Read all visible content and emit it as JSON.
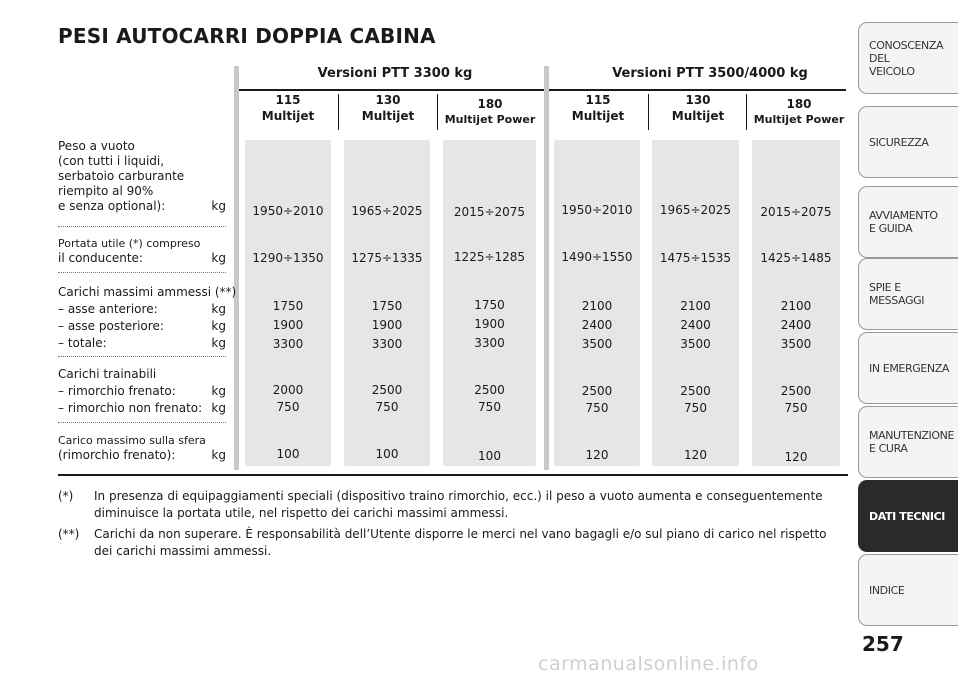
{
  "title": "PESI AUTOCARRI DOPPIA CABINA",
  "groups": [
    "Versioni PTT 3300 kg",
    "Versioni PTT 3500/4000 kg"
  ],
  "columns": [
    {
      "num": "115",
      "sub": "Multijet"
    },
    {
      "num": "130",
      "sub": "Multijet"
    },
    {
      "num": "180",
      "sub": "Multijet Power"
    },
    {
      "num": "115",
      "sub": "Multijet"
    },
    {
      "num": "130",
      "sub": "Multijet"
    },
    {
      "num": "180",
      "sub": "Multijet Power"
    }
  ],
  "rows": {
    "peso_vuoto": {
      "label_lines": [
        "Peso a vuoto",
        "(con tutti i liquidi,",
        "serbatoio carburante",
        "riempito al 90%"
      ],
      "label_last": "e senza optional):",
      "unit": "kg",
      "values": [
        "1950÷2010",
        "1965÷2025",
        "2015÷2075",
        "1950÷2010",
        "1965÷2025",
        "2015÷2075"
      ]
    },
    "portata_utile": {
      "label_line1": "Portata utile (*) compreso",
      "label_last": "il conducente:",
      "unit": "kg",
      "values": [
        "1290÷1350",
        "1275÷1335",
        "1225÷1285",
        "1490÷1550",
        "1475÷1535",
        "1425÷1485"
      ]
    },
    "carichi_massimi": {
      "label_line1": "Carichi massimi ammessi (**)",
      "sub": [
        "– asse anteriore:",
        "– asse posteriore:",
        "– totale:"
      ],
      "unit": "kg",
      "anteriore": [
        "1750",
        "1750",
        "1750",
        "2100",
        "2100",
        "2100"
      ],
      "posteriore": [
        "1900",
        "1900",
        "1900",
        "2400",
        "2400",
        "2400"
      ],
      "totale": [
        "3300",
        "3300",
        "3300",
        "3500",
        "3500",
        "3500"
      ]
    },
    "carichi_trainabili": {
      "label_line1": "Carichi trainabili",
      "sub": [
        "– rimorchio frenato:",
        "– rimorchio non frenato:"
      ],
      "unit": "kg",
      "frenato": [
        "2000",
        "2500",
        "2500",
        "2500",
        "2500",
        "2500"
      ],
      "non_frenato": [
        "750",
        "750",
        "750",
        "750",
        "750",
        "750"
      ]
    },
    "carico_sfera": {
      "label_line1": "Carico massimo sulla sfera",
      "label_last": "(rimorchio frenato):",
      "unit": "kg",
      "values": [
        "100",
        "100",
        "100",
        "120",
        "120",
        "120"
      ]
    }
  },
  "notes": [
    {
      "mark": "(*)",
      "text": "In presenza di equipaggiamenti speciali (dispositivo traino rimorchio, ecc.) il peso a vuoto aumenta e conseguentemente diminuisce la portata utile, nel rispetto dei carichi massimi ammessi."
    },
    {
      "mark": "(**)",
      "text": "Carichi da non superare. È responsabilità dell’Utente disporre le merci nel vano bagagli e/o sul piano di carico nel rispetto dei carichi massimi ammessi."
    }
  ],
  "tabs": [
    {
      "lines": [
        "CONOSCENZA",
        "DEL",
        "VEICOLO"
      ],
      "active": false
    },
    {
      "lines": [
        "SICUREZZA"
      ],
      "active": false
    },
    {
      "lines": [
        "AVVIAMENTO",
        "E GUIDA"
      ],
      "active": false
    },
    {
      "lines": [
        "SPIE E",
        "MESSAGGI"
      ],
      "active": false
    },
    {
      "lines": [
        "IN EMERGENZA"
      ],
      "active": false
    },
    {
      "lines": [
        "MANUTENZIONE",
        "E CURA"
      ],
      "active": false
    },
    {
      "lines": [
        "DATI TECNICI"
      ],
      "active": true
    },
    {
      "lines": [
        "INDICE"
      ],
      "active": false
    }
  ],
  "page_number": "257",
  "watermark": "carmanualsonline.info"
}
